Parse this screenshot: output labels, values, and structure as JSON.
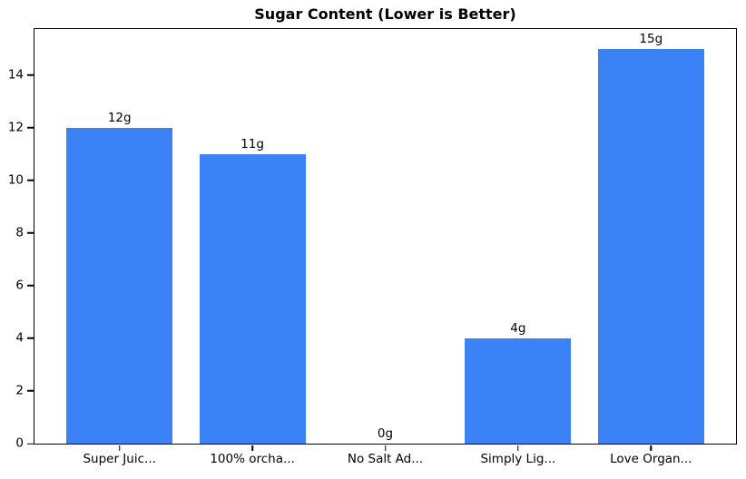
{
  "chart_data": {
    "type": "bar",
    "title": "Sugar Content (Lower is Better)",
    "categories": [
      "Super Juic...",
      "100% orcha...",
      "No Salt Ad...",
      "Simply Lig...",
      "Love Organ..."
    ],
    "values": [
      12,
      11,
      0,
      4,
      15
    ],
    "bar_labels": [
      "12g",
      "11g",
      "0g",
      "4g",
      "15g"
    ],
    "xlabel": "",
    "ylabel": "",
    "ylim": [
      0,
      15.75
    ],
    "yticks": [
      0,
      2,
      4,
      6,
      8,
      10,
      12,
      14
    ],
    "bar_color": "#3b82f6",
    "bar_width_fraction": 0.8,
    "grid": false,
    "legend": "none"
  }
}
